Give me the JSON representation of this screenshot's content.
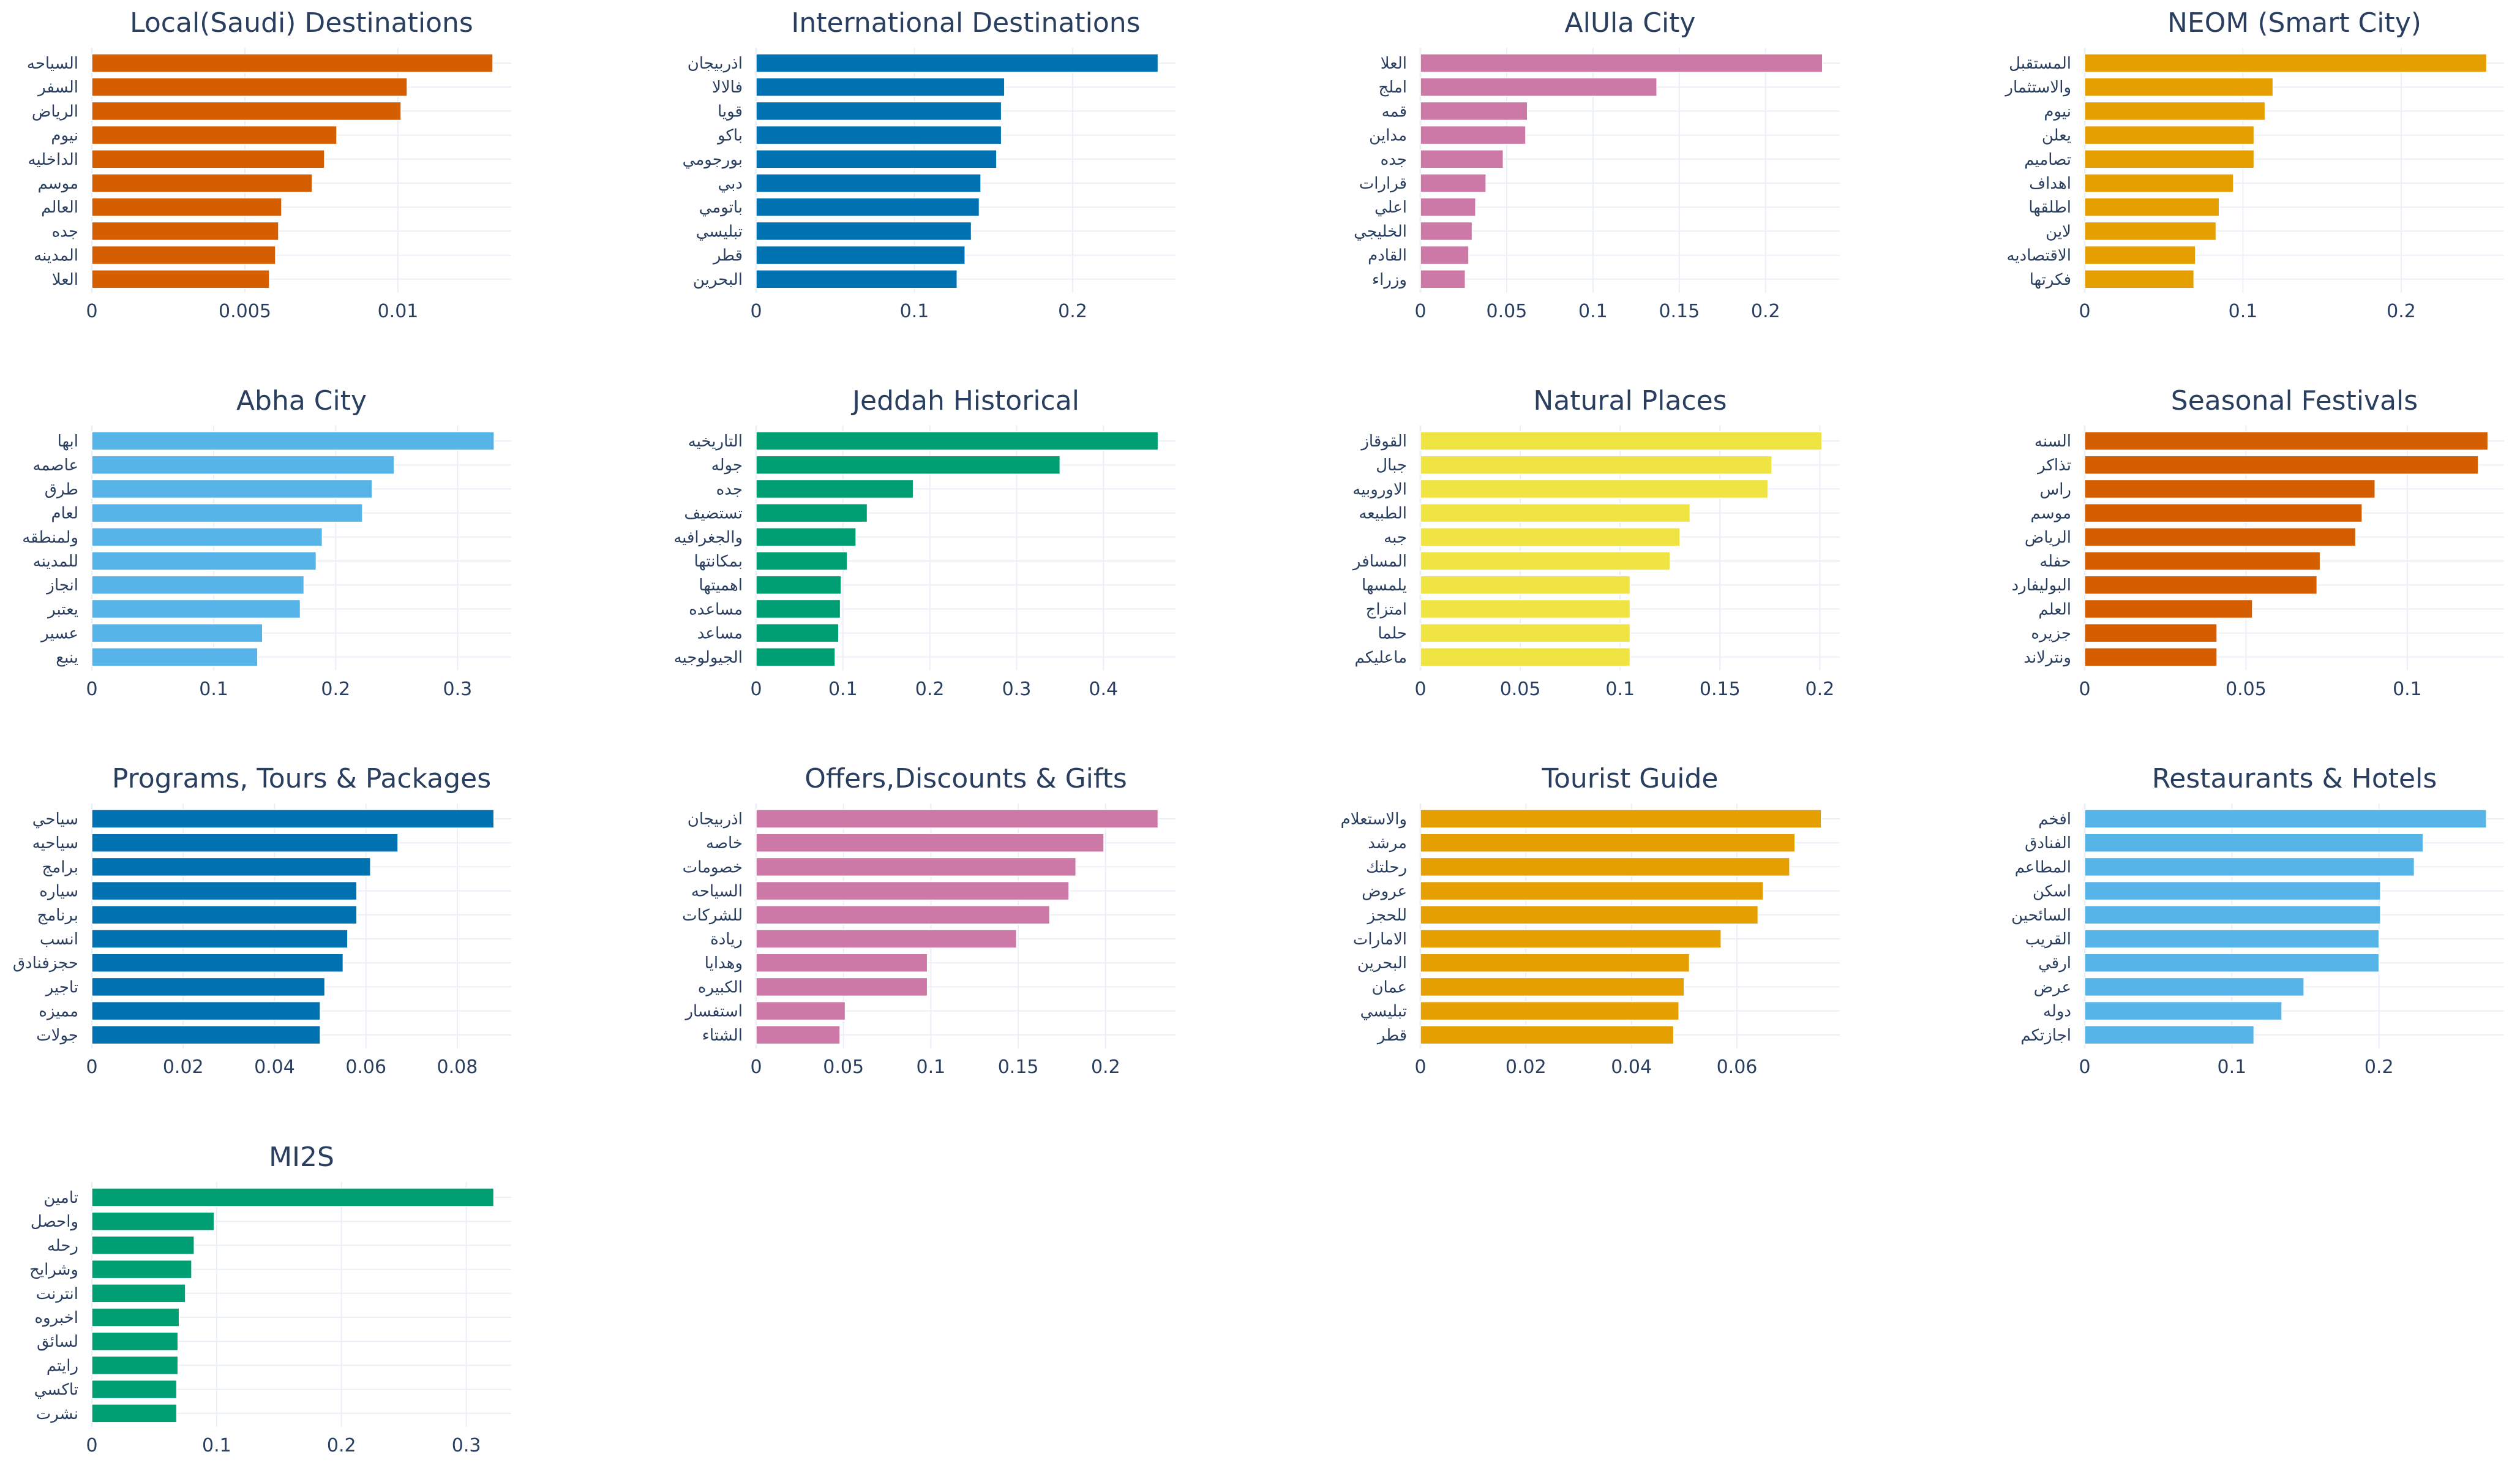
{
  "chart_data": [
    {
      "type": "bar",
      "orientation": "horizontal",
      "title": "Local(Saudi) Destinations",
      "color": "#D55E00",
      "categories": [
        "السياحه",
        "السفر",
        "الرياض",
        "نيوم",
        "الداخليه",
        "موسم",
        "العالم",
        "جده",
        "المدينه",
        "العلا"
      ],
      "values": [
        0.0131,
        0.0103,
        0.0101,
        0.008,
        0.0076,
        0.0072,
        0.0062,
        0.0061,
        0.006,
        0.0058
      ],
      "xlim": [
        0,
        0.0137
      ],
      "ticks": [
        0,
        0.005,
        0.01
      ],
      "tick_labels": [
        "0",
        "0.005",
        "0.01"
      ]
    },
    {
      "type": "bar",
      "orientation": "horizontal",
      "title": "International Destinations",
      "color": "#0072B2",
      "categories": [
        "اذربيجان",
        "فالالا",
        "قويا",
        "باكو",
        "بورجومي",
        "دبي",
        "باتومي",
        "تبليسي",
        "قطر",
        "البحرين"
      ],
      "values": [
        0.254,
        0.157,
        0.155,
        0.155,
        0.152,
        0.142,
        0.141,
        0.136,
        0.132,
        0.127
      ],
      "xlim": [
        0,
        0.265
      ],
      "ticks": [
        0,
        0.1,
        0.2
      ],
      "tick_labels": [
        "0",
        "0.1",
        "0.2"
      ]
    },
    {
      "type": "bar",
      "orientation": "horizontal",
      "title": "AlUla City",
      "color": "#CC79A7",
      "categories": [
        "العلا",
        "املج",
        "قمه",
        "مداين",
        "جده",
        "قرارات",
        "اعلي",
        "الخليجي",
        "القادم",
        "وزراء"
      ],
      "values": [
        0.233,
        0.137,
        0.062,
        0.061,
        0.048,
        0.038,
        0.032,
        0.03,
        0.028,
        0.026
      ],
      "xlim": [
        0,
        0.243
      ],
      "ticks": [
        0,
        0.05,
        0.1,
        0.15,
        0.2
      ],
      "tick_labels": [
        "0",
        "0.05",
        "0.1",
        "0.15",
        "0.2"
      ]
    },
    {
      "type": "bar",
      "orientation": "horizontal",
      "title": "NEOM (Smart City)",
      "color": "#E69F00",
      "categories": [
        "المستقبل",
        "والاستثمار",
        "نيوم",
        "يعلن",
        "تصاميم",
        "اهداف",
        "اطلقها",
        "لاين",
        "الاقتصاديه",
        "فكرتها"
      ],
      "values": [
        0.254,
        0.119,
        0.114,
        0.107,
        0.107,
        0.094,
        0.085,
        0.083,
        0.07,
        0.069
      ],
      "xlim": [
        0,
        0.265
      ],
      "ticks": [
        0,
        0.1,
        0.2
      ],
      "tick_labels": [
        "0",
        "0.1",
        "0.2"
      ]
    },
    {
      "type": "bar",
      "orientation": "horizontal",
      "title": "Abha City",
      "color": "#56B4E9",
      "categories": [
        "ابها",
        "عاصمه",
        "طرق",
        "لعام",
        "ولمنطقه",
        "للمدينه",
        "انجاز",
        "يعتبر",
        "عسير",
        "ينبع"
      ],
      "values": [
        0.33,
        0.248,
        0.23,
        0.222,
        0.189,
        0.184,
        0.174,
        0.171,
        0.14,
        0.136
      ],
      "xlim": [
        0,
        0.344
      ],
      "ticks": [
        0,
        0.1,
        0.2,
        0.3
      ],
      "tick_labels": [
        "0",
        "0.1",
        "0.2",
        "0.3"
      ]
    },
    {
      "type": "bar",
      "orientation": "horizontal",
      "title": "Jeddah Historical",
      "color": "#009E73",
      "categories": [
        "التاريخيه",
        "جوله",
        "جده",
        "تستضيف",
        "والجغرافيه",
        "بمكانتها",
        "اهميتها",
        "مساعده",
        "مساعد",
        "الجيولوجيه"
      ],
      "values": [
        0.463,
        0.35,
        0.181,
        0.128,
        0.115,
        0.105,
        0.098,
        0.097,
        0.095,
        0.091
      ],
      "xlim": [
        0,
        0.483
      ],
      "ticks": [
        0,
        0.1,
        0.2,
        0.3,
        0.4
      ],
      "tick_labels": [
        "0",
        "0.1",
        "0.2",
        "0.3",
        "0.4"
      ]
    },
    {
      "type": "bar",
      "orientation": "horizontal",
      "title": "Natural Places",
      "color": "#F0E442",
      "categories": [
        "القوقاز",
        "جبال",
        "الاوروبيه",
        "الطبيعه",
        "جبه",
        "المسافر",
        "يلمسها",
        "امتزاج",
        "حلما",
        "ماعليكم"
      ],
      "values": [
        0.201,
        0.176,
        0.174,
        0.135,
        0.13,
        0.125,
        0.105,
        0.105,
        0.105,
        0.105
      ],
      "xlim": [
        0,
        0.21
      ],
      "ticks": [
        0,
        0.05,
        0.1,
        0.15,
        0.2
      ],
      "tick_labels": [
        "0",
        "0.05",
        "0.1",
        "0.15",
        "0.2"
      ]
    },
    {
      "type": "bar",
      "orientation": "horizontal",
      "title": "Seasonal Festivals",
      "color": "#D55E00",
      "categories": [
        "السنه",
        "تذاكر",
        "راس",
        "موسم",
        "الرياض",
        "حفله",
        "البوليفارد",
        "العلم",
        "جزيره",
        "ونترلاند"
      ],
      "values": [
        0.125,
        0.122,
        0.09,
        0.086,
        0.084,
        0.073,
        0.072,
        0.052,
        0.041,
        0.041
      ],
      "xlim": [
        0,
        0.13
      ],
      "ticks": [
        0,
        0.05,
        0.1
      ],
      "tick_labels": [
        "0",
        "0.05",
        "0.1"
      ]
    },
    {
      "type": "bar",
      "orientation": "horizontal",
      "title": "Programs, Tours & Packages",
      "color": "#0072B2",
      "categories": [
        "سياحي",
        "سياحيه",
        "برامج",
        "سياره",
        "برنامج",
        "انسب",
        "حجزفنادق",
        "تاجير",
        "مميزه",
        "جولات"
      ],
      "values": [
        0.088,
        0.067,
        0.061,
        0.058,
        0.058,
        0.056,
        0.055,
        0.051,
        0.05,
        0.05
      ],
      "xlim": [
        0,
        0.0918
      ],
      "ticks": [
        0,
        0.02,
        0.04,
        0.06,
        0.08
      ],
      "tick_labels": [
        "0",
        "0.02",
        "0.04",
        "0.06",
        "0.08"
      ]
    },
    {
      "type": "bar",
      "orientation": "horizontal",
      "title": "Offers,Discounts & Gifts",
      "color": "#CC79A7",
      "categories": [
        "اذربيجان",
        "خاصه",
        "خصومات",
        "السياحه",
        "للشركات",
        "ريادة",
        "وهدايا",
        "الكبيره",
        "استفسار",
        "الشتاء"
      ],
      "values": [
        0.23,
        0.199,
        0.183,
        0.179,
        0.168,
        0.149,
        0.098,
        0.098,
        0.051,
        0.048
      ],
      "xlim": [
        0,
        0.24
      ],
      "ticks": [
        0,
        0.05,
        0.1,
        0.15,
        0.2
      ],
      "tick_labels": [
        "0",
        "0.05",
        "0.1",
        "0.15",
        "0.2"
      ]
    },
    {
      "type": "bar",
      "orientation": "horizontal",
      "title": "Tourist Guide",
      "color": "#E69F00",
      "categories": [
        "والاستعلام",
        "مرشد",
        "رحلتك",
        "عروض",
        "للحجز",
        "الامارات",
        "البحرين",
        "عمان",
        "تبليسي",
        "قطر"
      ],
      "values": [
        0.076,
        0.071,
        0.07,
        0.065,
        0.064,
        0.057,
        0.051,
        0.05,
        0.049,
        0.048
      ],
      "xlim": [
        0,
        0.0795
      ],
      "ticks": [
        0,
        0.02,
        0.04,
        0.06
      ],
      "tick_labels": [
        "0",
        "0.02",
        "0.04",
        "0.06"
      ]
    },
    {
      "type": "bar",
      "orientation": "horizontal",
      "title": "Restaurants & Hotels",
      "color": "#56B4E9",
      "categories": [
        "افخم",
        "الفنادق",
        "المطاعم",
        "اسكن",
        "السائحين",
        "القريب",
        "ارقي",
        "عرض",
        "دوله",
        "اجازتكم"
      ],
      "values": [
        0.273,
        0.23,
        0.224,
        0.201,
        0.201,
        0.2,
        0.2,
        0.149,
        0.134,
        0.115
      ],
      "xlim": [
        0,
        0.285
      ],
      "ticks": [
        0,
        0.1,
        0.2
      ],
      "tick_labels": [
        "0",
        "0.1",
        "0.2"
      ]
    },
    {
      "type": "bar",
      "orientation": "horizontal",
      "title": "MI2S",
      "color": "#009E73",
      "categories": [
        "تامين",
        "واحصل",
        "رحله",
        "وشرايح",
        "انترنت",
        "اخبروه",
        "لسائق",
        "رايتم",
        "تاكسي",
        "نشرت"
      ],
      "values": [
        0.322,
        0.098,
        0.082,
        0.08,
        0.075,
        0.07,
        0.069,
        0.069,
        0.068,
        0.068
      ],
      "xlim": [
        0,
        0.336
      ],
      "ticks": [
        0,
        0.1,
        0.2,
        0.3
      ],
      "tick_labels": [
        "0",
        "0.1",
        "0.2",
        "0.3"
      ]
    }
  ]
}
